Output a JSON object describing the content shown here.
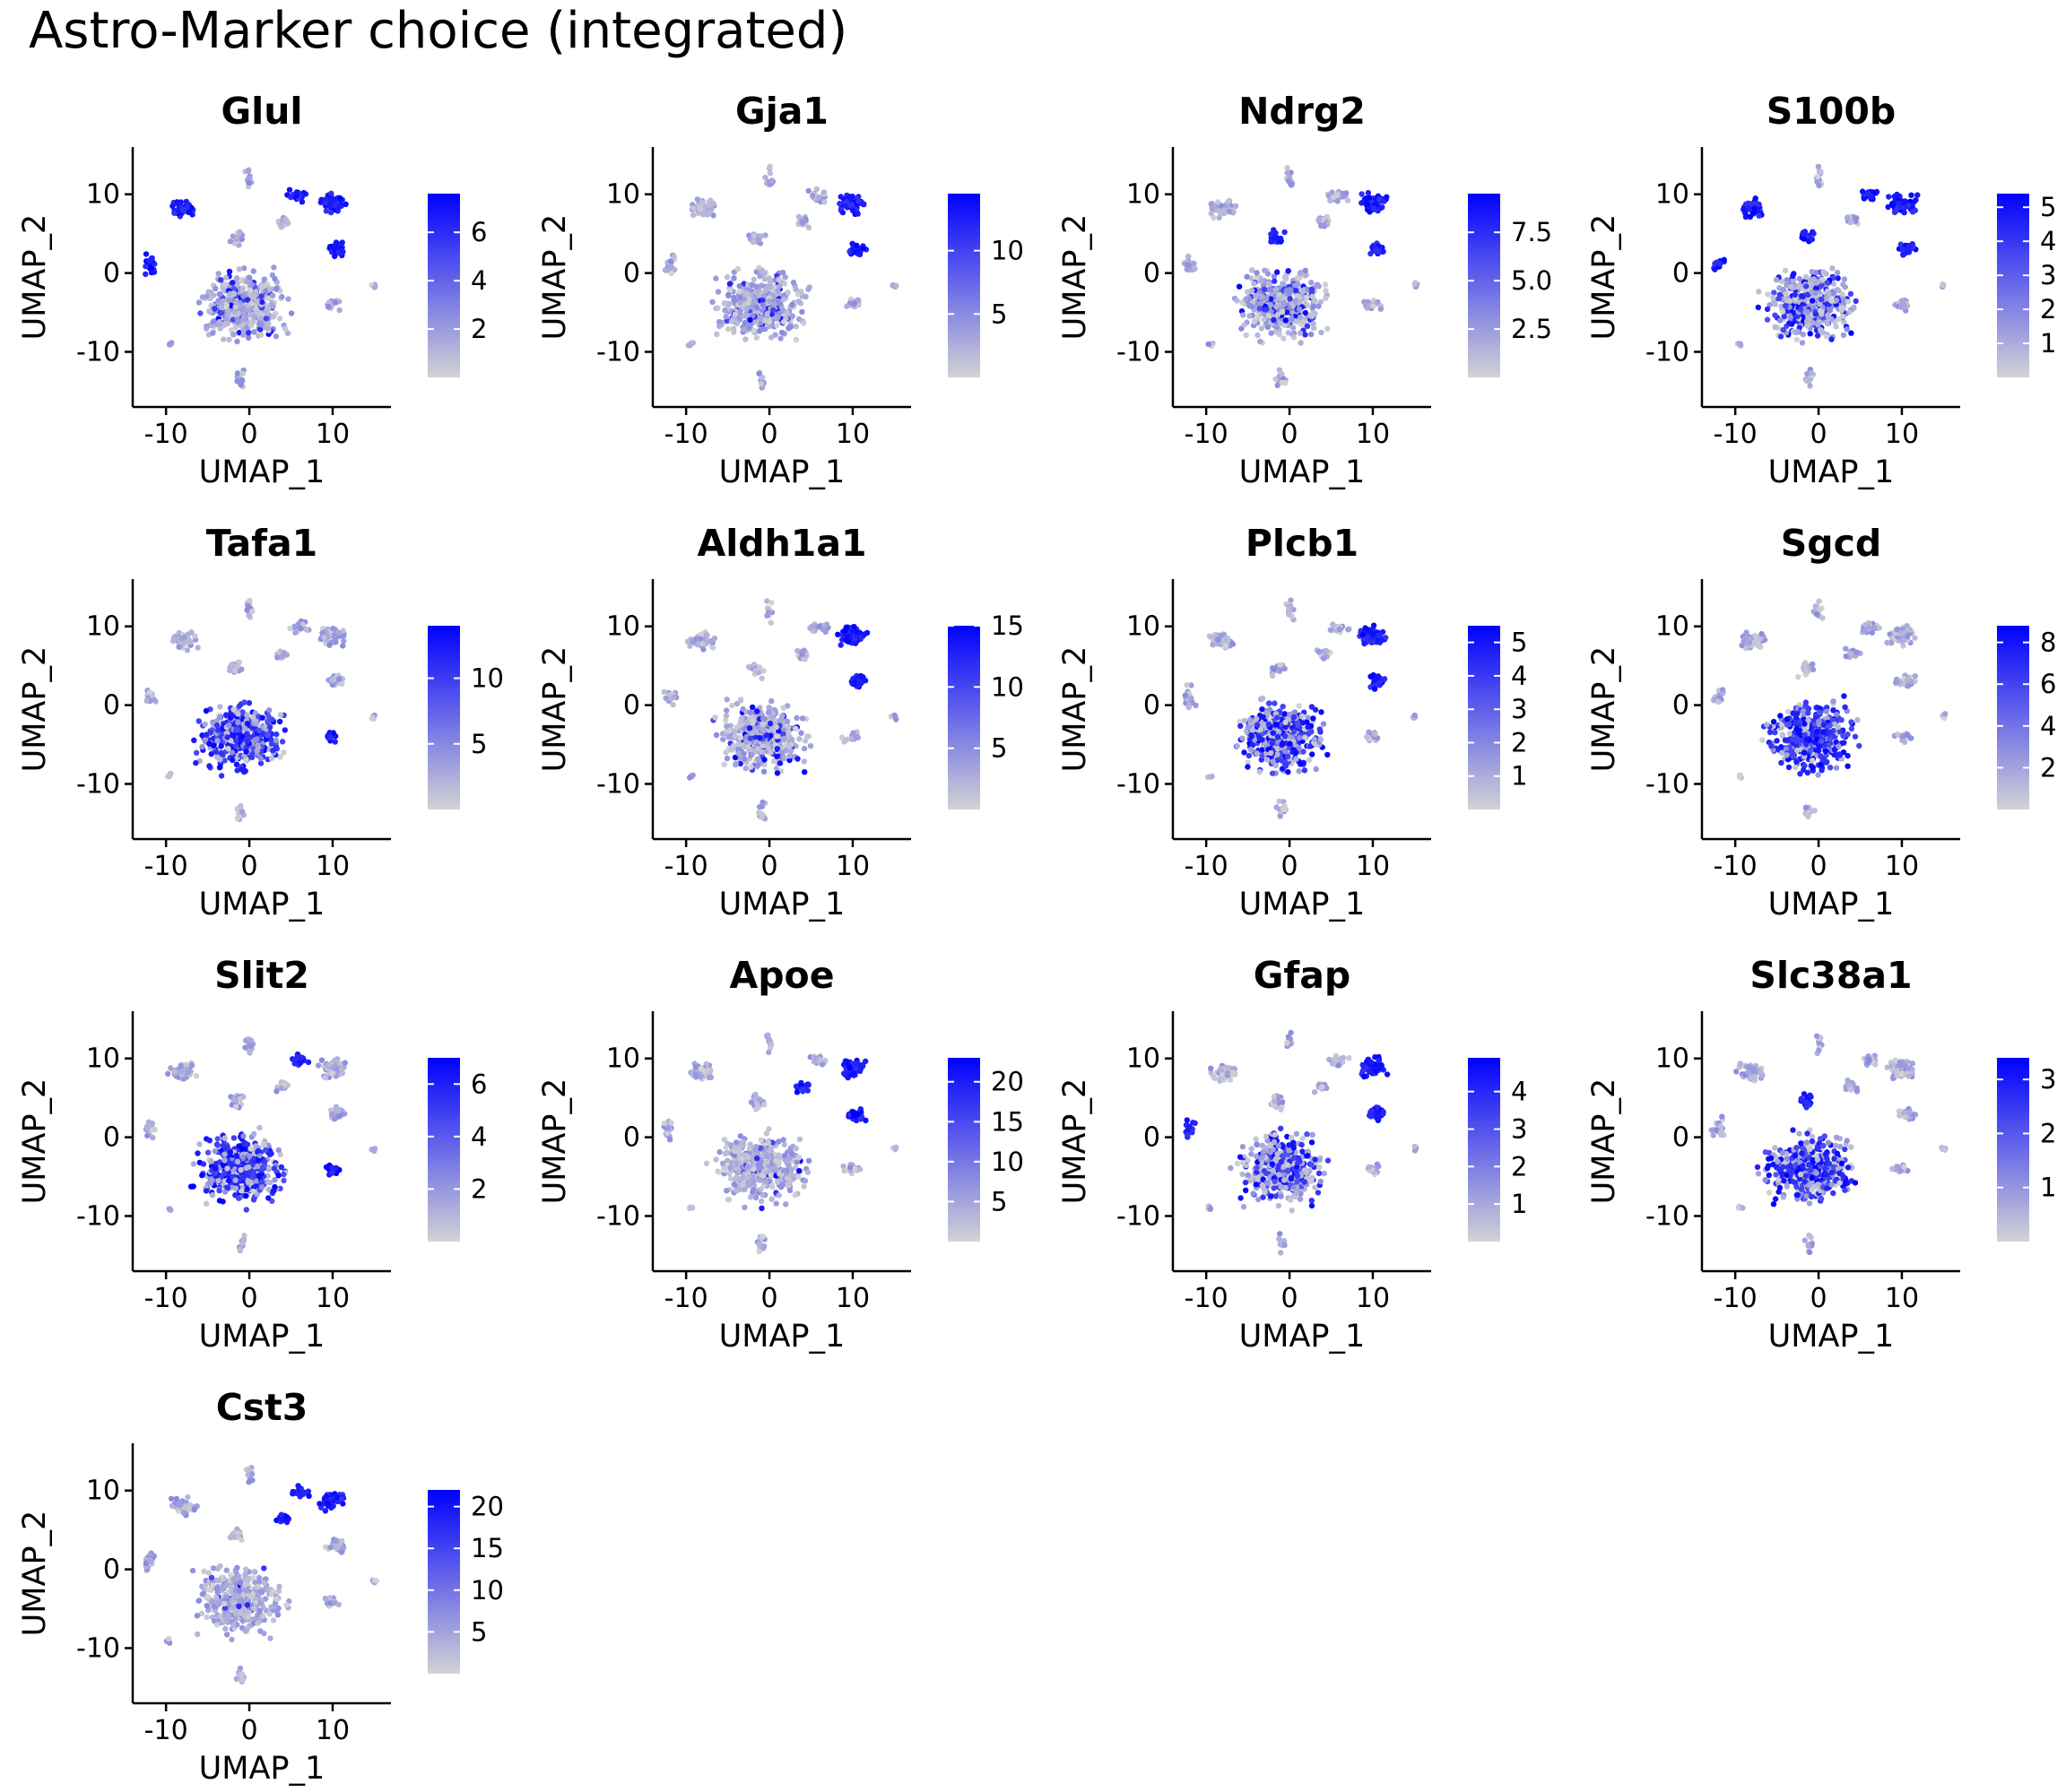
{
  "figure": {
    "title": "Astro-Marker choice (integrated)"
  },
  "colors": {
    "low": "#d3d3d3",
    "high": "#0000ff",
    "axis": "#000000"
  },
  "chart_data": [
    {
      "type": "scatter",
      "title": "Glul",
      "xlabel": "UMAP_1",
      "ylabel": "UMAP_2",
      "xlim": [
        -14,
        17
      ],
      "ylim": [
        -17,
        16
      ],
      "xticks": [
        -10,
        0,
        10
      ],
      "yticks": [
        -10,
        0,
        10
      ],
      "color_range": [
        0,
        7.6
      ],
      "legend_ticks": [
        2,
        4,
        6
      ],
      "legend_tick_labels": [
        "2",
        "4",
        "6"
      ],
      "high_clusters": [
        "ur-a",
        "ur-b",
        "left-b",
        "left-a",
        "right-mid"
      ],
      "core_level": 0.15
    },
    {
      "type": "scatter",
      "title": "Gja1",
      "xlabel": "UMAP_1",
      "ylabel": "UMAP_2",
      "xlim": [
        -14,
        17
      ],
      "ylim": [
        -17,
        16
      ],
      "xticks": [
        -10,
        0,
        10
      ],
      "yticks": [
        -10,
        0,
        10
      ],
      "color_range": [
        0,
        14.5
      ],
      "legend_ticks": [
        5,
        10
      ],
      "legend_tick_labels": [
        "5",
        "10"
      ],
      "high_clusters": [
        "ur-a",
        "right-mid"
      ],
      "core_level": 0.1
    },
    {
      "type": "scatter",
      "title": "Ndrg2",
      "xlabel": "UMAP_1",
      "ylabel": "UMAP_2",
      "xlim": [
        -14,
        17
      ],
      "ylim": [
        -17,
        16
      ],
      "xticks": [
        -10,
        0,
        10
      ],
      "yticks": [
        -10,
        0,
        10
      ],
      "color_range": [
        0,
        9.5
      ],
      "legend_ticks": [
        2.5,
        5.0,
        7.5
      ],
      "legend_tick_labels": [
        "2.5",
        "5.0",
        "7.5"
      ],
      "high_clusters": [
        "ur-a",
        "right-mid",
        "mid-up"
      ],
      "core_level": 0.2
    },
    {
      "type": "scatter",
      "title": "S100b",
      "xlabel": "UMAP_1",
      "ylabel": "UMAP_2",
      "xlim": [
        -14,
        17
      ],
      "ylim": [
        -17,
        16
      ],
      "xticks": [
        -10,
        0,
        10
      ],
      "yticks": [
        -10,
        0,
        10
      ],
      "color_range": [
        0,
        5.4
      ],
      "legend_ticks": [
        1,
        2,
        3,
        4,
        5
      ],
      "legend_tick_labels": [
        "1",
        "2",
        "3",
        "4",
        "5"
      ],
      "high_clusters": [
        "ur-a",
        "ur-b",
        "left-a",
        "left-b",
        "right-mid",
        "mid-up"
      ],
      "core_level": 0.35
    },
    {
      "type": "scatter",
      "title": "Tafa1",
      "xlabel": "UMAP_1",
      "ylabel": "UMAP_2",
      "xlim": [
        -14,
        17
      ],
      "ylim": [
        -17,
        16
      ],
      "xticks": [
        -10,
        0,
        10
      ],
      "yticks": [
        -10,
        0,
        10
      ],
      "color_range": [
        0,
        14
      ],
      "legend_ticks": [
        5,
        10
      ],
      "legend_tick_labels": [
        "5",
        "10"
      ],
      "high_clusters": [
        "right-low"
      ],
      "core_level": 0.6
    },
    {
      "type": "scatter",
      "title": "Aldh1a1",
      "xlabel": "UMAP_1",
      "ylabel": "UMAP_2",
      "xlim": [
        -14,
        17
      ],
      "ylim": [
        -17,
        16
      ],
      "xticks": [
        -10,
        0,
        10
      ],
      "yticks": [
        -10,
        0,
        10
      ],
      "color_range": [
        0,
        15
      ],
      "legend_ticks": [
        5,
        10,
        15
      ],
      "legend_tick_labels": [
        "5",
        "10",
        "15"
      ],
      "high_clusters": [
        "ur-a",
        "right-mid"
      ],
      "core_level": 0.15
    },
    {
      "type": "scatter",
      "title": "Plcb1",
      "xlabel": "UMAP_1",
      "ylabel": "UMAP_2",
      "xlim": [
        -14,
        17
      ],
      "ylim": [
        -17,
        16
      ],
      "xticks": [
        -10,
        0,
        10
      ],
      "yticks": [
        -10,
        0,
        10
      ],
      "color_range": [
        0,
        5.5
      ],
      "legend_ticks": [
        1,
        2,
        3,
        4,
        5
      ],
      "legend_tick_labels": [
        "1",
        "2",
        "3",
        "4",
        "5"
      ],
      "high_clusters": [
        "ur-a",
        "right-mid"
      ],
      "core_level": 0.6
    },
    {
      "type": "scatter",
      "title": "Sgcd",
      "xlabel": "UMAP_1",
      "ylabel": "UMAP_2",
      "xlim": [
        -14,
        17
      ],
      "ylim": [
        -17,
        16
      ],
      "xticks": [
        -10,
        0,
        10
      ],
      "yticks": [
        -10,
        0,
        10
      ],
      "color_range": [
        0,
        8.8
      ],
      "legend_ticks": [
        2,
        4,
        6,
        8
      ],
      "legend_tick_labels": [
        "2",
        "4",
        "6",
        "8"
      ],
      "high_clusters": [],
      "core_level": 0.7
    },
    {
      "type": "scatter",
      "title": "Slit2",
      "xlabel": "UMAP_1",
      "ylabel": "UMAP_2",
      "xlim": [
        -14,
        17
      ],
      "ylim": [
        -17,
        16
      ],
      "xticks": [
        -10,
        0,
        10
      ],
      "yticks": [
        -10,
        0,
        10
      ],
      "color_range": [
        0,
        7
      ],
      "legend_ticks": [
        2,
        4,
        6
      ],
      "legend_tick_labels": [
        "2",
        "4",
        "6"
      ],
      "high_clusters": [
        "ur-b",
        "right-low"
      ],
      "core_level": 0.65
    },
    {
      "type": "scatter",
      "title": "Apoe",
      "xlabel": "UMAP_1",
      "ylabel": "UMAP_2",
      "xlim": [
        -14,
        17
      ],
      "ylim": [
        -17,
        16
      ],
      "xticks": [
        -10,
        0,
        10
      ],
      "yticks": [
        -10,
        0,
        10
      ],
      "color_range": [
        0,
        23
      ],
      "legend_ticks": [
        5,
        10,
        15,
        20
      ],
      "legend_tick_labels": [
        "5",
        "10",
        "15",
        "20"
      ],
      "high_clusters": [
        "ur-a",
        "right-mid",
        "mid-right"
      ],
      "core_level": 0.03
    },
    {
      "type": "scatter",
      "title": "Gfap",
      "xlabel": "UMAP_1",
      "ylabel": "UMAP_2",
      "xlim": [
        -14,
        17
      ],
      "ylim": [
        -17,
        16
      ],
      "xticks": [
        -10,
        0,
        10
      ],
      "yticks": [
        -10,
        0,
        10
      ],
      "color_range": [
        0,
        4.9
      ],
      "legend_ticks": [
        1,
        2,
        3,
        4
      ],
      "legend_tick_labels": [
        "1",
        "2",
        "3",
        "4"
      ],
      "high_clusters": [
        "ur-a",
        "right-mid",
        "left-b"
      ],
      "core_level": 0.4
    },
    {
      "type": "scatter",
      "title": "Slc38a1",
      "xlabel": "UMAP_1",
      "ylabel": "UMAP_2",
      "xlim": [
        -14,
        17
      ],
      "ylim": [
        -17,
        16
      ],
      "xticks": [
        -10,
        0,
        10
      ],
      "yticks": [
        -10,
        0,
        10
      ],
      "color_range": [
        0,
        3.4
      ],
      "legend_ticks": [
        1,
        2,
        3
      ],
      "legend_tick_labels": [
        "1",
        "2",
        "3"
      ],
      "high_clusters": [
        "mid-up"
      ],
      "core_level": 0.6
    },
    {
      "type": "scatter",
      "title": "Cst3",
      "xlabel": "UMAP_1",
      "ylabel": "UMAP_2",
      "xlim": [
        -14,
        17
      ],
      "ylim": [
        -17,
        16
      ],
      "xticks": [
        -10,
        0,
        10
      ],
      "yticks": [
        -10,
        0,
        10
      ],
      "color_range": [
        0,
        22
      ],
      "legend_ticks": [
        5,
        10,
        15,
        20
      ],
      "legend_tick_labels": [
        "5",
        "10",
        "15",
        "20"
      ],
      "high_clusters": [
        "ur-a",
        "ur-b",
        "mid-right"
      ],
      "core_level": 0.03
    }
  ]
}
